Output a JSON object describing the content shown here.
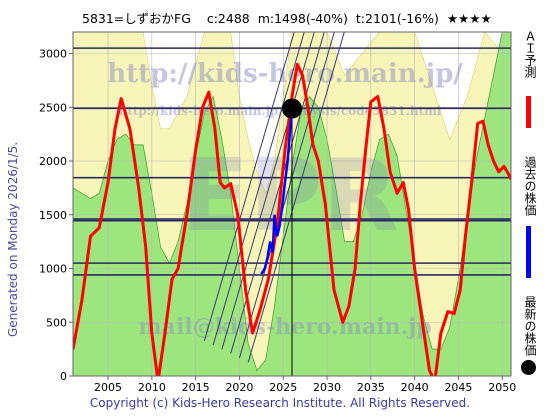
{
  "header": {
    "code_name": "5831=しずおかFG",
    "current": "c:2488",
    "min": "m:1498(-40%)",
    "target": "t:2101(-16%)",
    "stars": "★★★★"
  },
  "generated_label": "Generated on Monday 2026/1/5.",
  "copyright": "Copyright (c) Kids-Hero Research Institute. All Rights Reserved.",
  "watermarks": {
    "top": "http://kids-hero.main.jp/",
    "mid": "http://kids-hero.main.jp/analysis/code5831.html",
    "big": "EPR",
    "bottom": "mail@kids-hero.main.jp"
  },
  "legend": [
    {
      "label": "ＡＩ予測",
      "color": "#ff0000",
      "marker": "line"
    },
    {
      "label": "過去の株価",
      "color": "#0000ff",
      "marker": "line"
    },
    {
      "label": "最新の株価",
      "color": "#000000",
      "marker": "dot"
    }
  ],
  "chart_data": {
    "type": "line",
    "title": "",
    "xlabel": "",
    "ylabel": "",
    "xlim": [
      2001,
      2051
    ],
    "ylim": [
      0,
      3200
    ],
    "x_ticks": [
      2005,
      2010,
      2015,
      2020,
      2025,
      2030,
      2035,
      2040,
      2045,
      2050
    ],
    "y_ticks": [
      0,
      500,
      1000,
      1500,
      2000,
      2500,
      3000
    ],
    "grid": true,
    "legend_position": "right-outside",
    "horizontal_levels": [
      3050,
      2490,
      1845,
      1460,
      1445,
      1050,
      940
    ],
    "current_price": {
      "x": 2026.0,
      "y": 2488
    },
    "colors": {
      "forecast": "#ff0000",
      "past": "#0000ff",
      "green": "#8ee36e",
      "yellow": "#f7f6b8",
      "level": "#2a2a60"
    },
    "series": [
      {
        "name": "ＡＩ予測",
        "color": "#ff0000",
        "x": [
          2001,
          2002,
          2003,
          2004,
          2005,
          2005.8,
          2006.5,
          2007.5,
          2008.5,
          2009.3,
          2010,
          2010.7,
          2011.5,
          2012.3,
          2013,
          2014,
          2015,
          2015.8,
          2016.5,
          2017.2,
          2017.8,
          2018.3,
          2019,
          2019.8,
          2020.7,
          2021.5,
          2022.3,
          2023.3,
          2024.3,
          2025.2,
          2026,
          2026.6,
          2027.2,
          2027.8,
          2028.4,
          2029,
          2029.8,
          2030.8,
          2031.8,
          2032.5,
          2033.2,
          2033.8,
          2034.4,
          2035,
          2035.8,
          2036.5,
          2037.2,
          2038,
          2038.7,
          2039.3,
          2040,
          2040.8,
          2041.7,
          2042.3,
          2043,
          2043.8,
          2044.5,
          2045.2,
          2045.8,
          2046.5,
          2047.2,
          2047.8,
          2048.4,
          2049,
          2049.6,
          2050.2,
          2050.7,
          2051
        ],
        "y": [
          250,
          700,
          1300,
          1380,
          1800,
          2300,
          2580,
          2300,
          1750,
          1200,
          400,
          -50,
          400,
          900,
          1000,
          1500,
          2100,
          2500,
          2640,
          2300,
          1800,
          1750,
          1790,
          1500,
          800,
          400,
          600,
          900,
          1400,
          2100,
          2600,
          2900,
          2800,
          2500,
          2150,
          2000,
          1600,
          800,
          500,
          650,
          1000,
          1600,
          2100,
          2550,
          2600,
          2300,
          1900,
          1700,
          1800,
          1550,
          1000,
          550,
          50,
          -50,
          400,
          600,
          580,
          800,
          1300,
          1800,
          2350,
          2370,
          2150,
          2000,
          1900,
          1950,
          1880,
          1830
        ]
      },
      {
        "name": "過去の株価",
        "color": "#0000ff",
        "x": [
          2022.5,
          2022.9,
          2023.2,
          2023.5,
          2023.8,
          2024.0,
          2024.3,
          2024.6,
          2024.9,
          2025.2,
          2025.5,
          2025.8,
          2026.0
        ],
        "y": [
          950,
          1000,
          1100,
          1250,
          1150,
          1500,
          1300,
          1400,
          1600,
          1800,
          2000,
          2300,
          2488
        ]
      }
    ],
    "band_upper": {
      "name": "green-upper",
      "x": [
        2001,
        2003,
        2004,
        2005,
        2006,
        2007,
        2008,
        2009,
        2010,
        2011,
        2012,
        2013,
        2014,
        2015,
        2016,
        2017,
        2018,
        2019,
        2020,
        2021,
        2022,
        2023,
        2024,
        2025,
        2026,
        2027,
        2028,
        2029,
        2030,
        2031,
        2032,
        2033,
        2034,
        2035,
        2036,
        2037,
        2038,
        2039,
        2040,
        2041,
        2042,
        2043,
        2044,
        2045,
        2046,
        2047,
        2048,
        2049,
        2050,
        2051
      ],
      "y": [
        1750,
        1650,
        1700,
        2000,
        2200,
        2250,
        2150,
        2150,
        1700,
        1200,
        1050,
        1250,
        1600,
        2050,
        2450,
        2600,
        2200,
        1700,
        1000,
        300,
        50,
        150,
        650,
        1300,
        1950,
        2450,
        2600,
        2500,
        2200,
        1750,
        1250,
        1250,
        1500,
        1900,
        2200,
        2250,
        2050,
        1550,
        1050,
        550,
        250,
        250,
        450,
        900,
        1450,
        2000,
        2400,
        2800,
        3200,
        3200
      ]
    },
    "band_yellow": {
      "name": "yellow-upper",
      "x": [
        2001,
        2003,
        2005,
        2007,
        2009,
        2010,
        2011,
        2012,
        2014,
        2016,
        2018,
        2019,
        2020,
        2021,
        2022,
        2023,
        2024,
        2026,
        2028,
        2030,
        2032,
        2034,
        2036,
        2038,
        2040,
        2042,
        2044,
        2046,
        2048,
        2049,
        2050,
        2051
      ],
      "y": [
        3200,
        3200,
        3200,
        3200,
        3200,
        2700,
        2300,
        2300,
        2600,
        3200,
        3200,
        3200,
        2600,
        2200,
        1900,
        1700,
        2000,
        3200,
        3200,
        3200,
        2800,
        3000,
        3200,
        3200,
        3200,
        2700,
        2200,
        2600,
        3200,
        3100,
        3000,
        3200
      ]
    }
  }
}
